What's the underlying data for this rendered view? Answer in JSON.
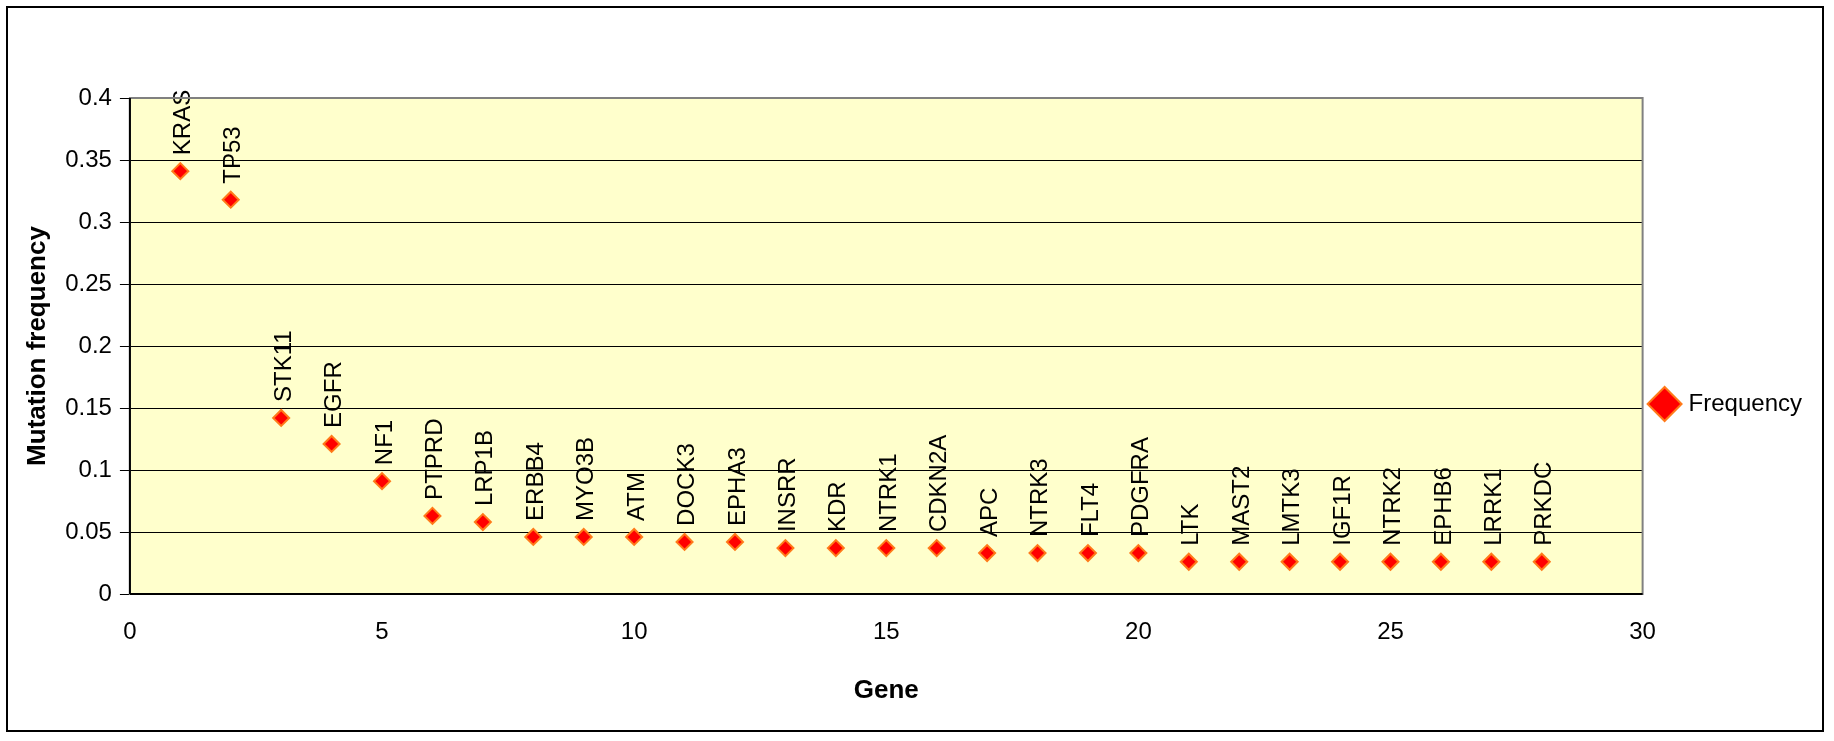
{
  "chart_data": {
    "type": "scatter",
    "xlabel": "Gene",
    "ylabel": "Mutation frequency",
    "xlim": [
      0,
      30
    ],
    "xticks": [
      0,
      5,
      10,
      15,
      20,
      25,
      30
    ],
    "ylim": [
      0,
      0.4
    ],
    "yticks": [
      0,
      0.05,
      0.1,
      0.15,
      0.2,
      0.25,
      0.3,
      0.35,
      0.4
    ],
    "grid": "y",
    "legend": "right",
    "marker": "diamond",
    "series": [
      {
        "name": "Frequency",
        "color": "#ff0000",
        "x": [
          1,
          2,
          3,
          4,
          5,
          6,
          7,
          8,
          9,
          10,
          11,
          12,
          13,
          14,
          15,
          16,
          17,
          18,
          19,
          20,
          21,
          22,
          23,
          24,
          25,
          26,
          27,
          28
        ],
        "values": [
          0.341,
          0.318,
          0.142,
          0.121,
          0.091,
          0.063,
          0.058,
          0.046,
          0.046,
          0.046,
          0.042,
          0.042,
          0.037,
          0.037,
          0.037,
          0.037,
          0.033,
          0.033,
          0.033,
          0.033,
          0.026,
          0.026,
          0.026,
          0.026,
          0.026,
          0.026,
          0.026,
          0.026
        ]
      }
    ],
    "annotations": [
      {
        "text": "KRAS",
        "x": 1,
        "y": 0.341
      },
      {
        "text": "TP53",
        "x": 2,
        "y": 0.318
      },
      {
        "text": "STK11",
        "x": 3,
        "y": 0.142
      },
      {
        "text": "EGFR",
        "x": 4,
        "y": 0.121
      },
      {
        "text": "NF1",
        "x": 5,
        "y": 0.091
      },
      {
        "text": "PTPRD",
        "x": 6,
        "y": 0.063
      },
      {
        "text": "LRP1B",
        "x": 7,
        "y": 0.058
      },
      {
        "text": "ERBB4",
        "x": 8,
        "y": 0.046
      },
      {
        "text": "MYO3B",
        "x": 9,
        "y": 0.046
      },
      {
        "text": "ATM",
        "x": 10,
        "y": 0.046
      },
      {
        "text": "DOCK3",
        "x": 11,
        "y": 0.042
      },
      {
        "text": "EPHA3",
        "x": 12,
        "y": 0.042
      },
      {
        "text": "INSRR",
        "x": 13,
        "y": 0.037
      },
      {
        "text": "KDR",
        "x": 14,
        "y": 0.037
      },
      {
        "text": "NTRK1",
        "x": 15,
        "y": 0.037
      },
      {
        "text": "CDKN2A",
        "x": 16,
        "y": 0.037
      },
      {
        "text": "APC",
        "x": 17,
        "y": 0.033
      },
      {
        "text": "NTRK3",
        "x": 18,
        "y": 0.033
      },
      {
        "text": "FLT4",
        "x": 19,
        "y": 0.033
      },
      {
        "text": "PDGFRA",
        "x": 20,
        "y": 0.033
      },
      {
        "text": "LTK",
        "x": 21,
        "y": 0.026
      },
      {
        "text": "MAST2",
        "x": 22,
        "y": 0.026
      },
      {
        "text": "LMTK3",
        "x": 23,
        "y": 0.026
      },
      {
        "text": "IGF1R",
        "x": 24,
        "y": 0.026
      },
      {
        "text": "NTRK2",
        "x": 25,
        "y": 0.026
      },
      {
        "text": "EPHB6",
        "x": 26,
        "y": 0.026
      },
      {
        "text": "LRRK1",
        "x": 27,
        "y": 0.026
      },
      {
        "text": "PRKDC",
        "x": 28,
        "y": 0.026
      }
    ]
  }
}
